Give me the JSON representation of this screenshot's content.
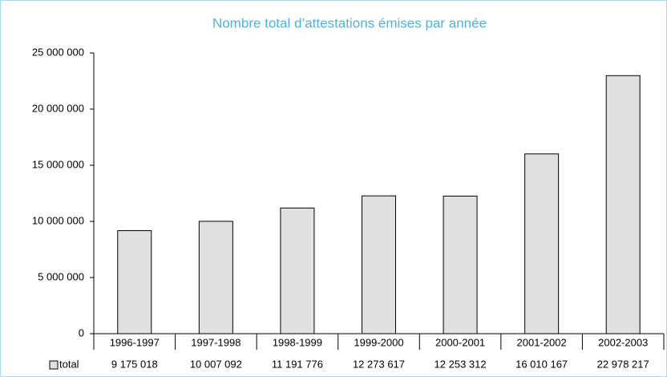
{
  "chart_data": {
    "type": "bar",
    "title": "Nombre total d’attestations émises par année",
    "categories": [
      "1996-1997",
      "1997-1998",
      "1998-1999",
      "1999-2000",
      "2000-2001",
      "2001-2002",
      "2002-2003"
    ],
    "series": [
      {
        "name": "total",
        "color": "#e0e0e0",
        "values": [
          9175018,
          10007092,
          11191776,
          12273617,
          12253312,
          16010167,
          22978217
        ],
        "value_labels": [
          "9 175 018",
          "10 007 092",
          "11 191 776",
          "12 273 617",
          "12 253 312",
          "16 010 167",
          "22 978 217"
        ]
      }
    ],
    "ylim": [
      0,
      25000000
    ],
    "yticks": [
      0,
      {
        "value": 5000000,
        "label": "5 000 000"
      },
      {
        "value": 10000000,
        "label": "10 000 000"
      },
      {
        "value": 15000000,
        "label": "15 000 000"
      },
      {
        "value": 20000000,
        "label": "20 000 000"
      },
      {
        "value": 25000000,
        "label": "25 000 000"
      }
    ],
    "grid": false
  }
}
